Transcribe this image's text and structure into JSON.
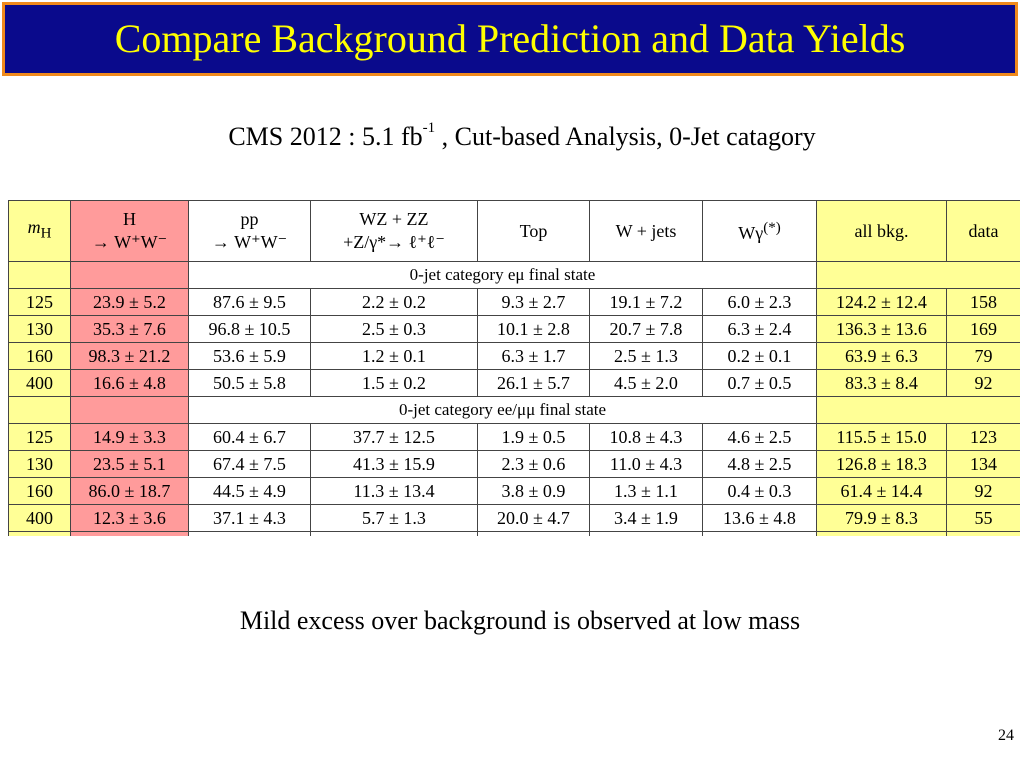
{
  "title": "Compare Background Prediction and Data Yields",
  "subtitle": {
    "main": "CMS 2012 : 5.1 fb",
    "sup": "-1",
    "rest": " , Cut-based Analysis, 0-Jet catagory"
  },
  "table": {
    "headers": [
      {
        "line1": "m",
        "sub": "H",
        "line2": ""
      },
      {
        "line1": "H",
        "line2": "→ W⁺W⁻"
      },
      {
        "line1": "pp",
        "line2": "→ W⁺W⁻"
      },
      {
        "line1": "WZ + ZZ",
        "line2": "+Z/γ*→ ℓ⁺ℓ⁻"
      },
      {
        "line1": "Top",
        "line2": ""
      },
      {
        "line1": "W + jets",
        "line2": ""
      },
      {
        "line1": "Wγ",
        "sup": "(*)",
        "line2": ""
      },
      {
        "line1": "all bkg.",
        "line2": ""
      },
      {
        "line1": "data",
        "line2": ""
      }
    ],
    "sections": [
      {
        "label": "0-jet category eμ final state",
        "rows": [
          [
            "125",
            "23.9 ± 5.2",
            "87.6 ± 9.5",
            "2.2 ± 0.2",
            "9.3 ± 2.7",
            "19.1 ± 7.2",
            "6.0 ± 2.3",
            "124.2 ± 12.4",
            "158"
          ],
          [
            "130",
            "35.3 ± 7.6",
            "96.8 ± 10.5",
            "2.5 ± 0.3",
            "10.1 ± 2.8",
            "20.7 ± 7.8",
            "6.3 ± 2.4",
            "136.3 ± 13.6",
            "169"
          ],
          [
            "160",
            "98.3 ± 21.2",
            "53.6 ± 5.9",
            "1.2 ± 0.1",
            "6.3 ± 1.7",
            "2.5 ± 1.3",
            "0.2 ± 0.1",
            "63.9 ± 6.3",
            "79"
          ],
          [
            "400",
            "16.6 ± 4.8",
            "50.5 ± 5.8",
            "1.5 ± 0.2",
            "26.1 ± 5.7",
            "4.5 ± 2.0",
            "0.7 ± 0.5",
            "83.3 ± 8.4",
            "92"
          ]
        ]
      },
      {
        "label": "0-jet category ee/μμ final state",
        "rows": [
          [
            "125",
            "14.9 ± 3.3",
            "60.4 ± 6.7",
            "37.7 ± 12.5",
            "1.9 ± 0.5",
            "10.8 ± 4.3",
            "4.6 ± 2.5",
            "115.5 ± 15.0",
            "123"
          ],
          [
            "130",
            "23.5 ± 5.1",
            "67.4 ± 7.5",
            "41.3 ± 15.9",
            "2.3 ± 0.6",
            "11.0 ± 4.3",
            "4.8 ± 2.5",
            "126.8 ± 18.3",
            "134"
          ],
          [
            "160",
            "86.0 ± 18.7",
            "44.5 ± 4.9",
            "11.3 ± 13.4",
            "3.8 ± 0.9",
            "1.3 ± 1.1",
            "0.4 ± 0.3",
            "61.4 ± 14.4",
            "92"
          ],
          [
            "400",
            "12.3 ± 3.6",
            "37.1 ± 4.3",
            "5.7 ± 1.3",
            "20.0 ± 4.7",
            "3.4 ± 1.9",
            "13.6 ± 4.8",
            "79.9 ± 8.3",
            "55"
          ]
        ]
      }
    ]
  },
  "footnote": "Mild excess over background is  observed at low mass",
  "page_number": "24",
  "colors": {
    "title_background": "#0a0a8c",
    "title_border": "#f08a1c",
    "title_text": "#ffff00",
    "signal_highlight": "#ff9b9b",
    "total_highlight": "#ffff96"
  }
}
